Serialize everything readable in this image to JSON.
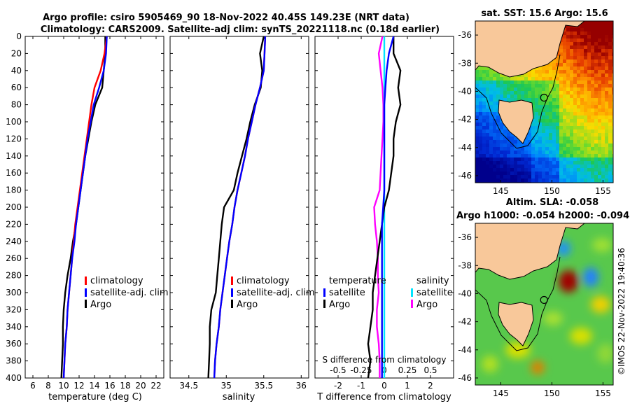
{
  "title_line1": "Argo profile: csiro 5905469_90 18-Nov-2022 40.45S 149.23E (NRT data)",
  "title_line2": "Climatology: CARS2009. Satellite-adj clim: synTS_20221118.nc (0.18d earlier)",
  "credit": "©IMOS 22-Nov-2022 19:40:36",
  "colors": {
    "climatology": "#ff0000",
    "satellite": "#0000ff",
    "argo": "#000000",
    "argo_s": "#ff00ff",
    "sat_s": "#00e5ff",
    "land": "#f8c89a"
  },
  "chart_data": [
    {
      "type": "line",
      "id": "temp",
      "xlabel": "temperature (deg C)",
      "xlim": [
        5,
        23
      ],
      "xticks": [
        "6",
        "8",
        "10",
        "12",
        "14",
        "16",
        "18",
        "20",
        "22"
      ],
      "ylim": [
        400,
        0
      ],
      "yticks": [
        "0",
        "20",
        "40",
        "60",
        "80",
        "100",
        "120",
        "140",
        "160",
        "180",
        "200",
        "220",
        "240",
        "260",
        "280",
        "300",
        "320",
        "340",
        "360",
        "380",
        "400"
      ],
      "depth": [
        0,
        20,
        40,
        60,
        80,
        100,
        120,
        140,
        160,
        180,
        200,
        220,
        240,
        260,
        280,
        300,
        320,
        340,
        360,
        380,
        400
      ],
      "series": [
        {
          "name": "climatology",
          "color": "#ff0000",
          "values": [
            15.6,
            15.3,
            14.8,
            14.0,
            13.6,
            13.3,
            13.0,
            12.7,
            12.4,
            12.1,
            11.8,
            11.5,
            11.3,
            11.1,
            10.9,
            10.7,
            10.5,
            10.4,
            10.2,
            10.1,
            10.0
          ]
        },
        {
          "name": "satellite-adj. clim",
          "color": "#0000ff",
          "values": [
            15.6,
            15.5,
            15.2,
            14.6,
            13.9,
            13.5,
            13.1,
            12.8,
            12.5,
            12.2,
            11.9,
            11.6,
            11.4,
            11.1,
            10.9,
            10.7,
            10.5,
            10.4,
            10.2,
            10.1,
            10.0
          ]
        },
        {
          "name": "Argo",
          "color": "#000000",
          "values": [
            15.4,
            15.4,
            15.2,
            15.0,
            14.1,
            13.6,
            13.2,
            12.8,
            12.5,
            12.2,
            11.9,
            11.6,
            11.2,
            10.9,
            10.5,
            10.2,
            10.0,
            9.9,
            9.9,
            9.8,
            9.7
          ]
        }
      ],
      "legend": [
        "climatology",
        "satellite-adj. clim",
        "Argo"
      ]
    },
    {
      "type": "line",
      "id": "sal",
      "xlabel": "salinity",
      "xlim": [
        34.25,
        36.1
      ],
      "xticks": [
        "34.5",
        "35",
        "35.5",
        "36"
      ],
      "ylim": [
        400,
        0
      ],
      "depth": [
        0,
        20,
        40,
        60,
        80,
        100,
        120,
        140,
        160,
        180,
        200,
        220,
        240,
        260,
        280,
        300,
        320,
        340,
        360,
        380,
        400
      ],
      "series": [
        {
          "name": "climatology",
          "color": "#ff0000",
          "values": [
            35.52,
            35.51,
            35.5,
            35.45,
            35.39,
            35.34,
            35.29,
            35.25,
            35.2,
            35.15,
            35.11,
            35.08,
            35.04,
            35.01,
            34.98,
            34.95,
            34.92,
            34.9,
            34.87,
            34.85,
            34.84
          ]
        },
        {
          "name": "satellite-adj. clim",
          "color": "#0000ff",
          "values": [
            35.52,
            35.51,
            35.5,
            35.45,
            35.39,
            35.34,
            35.29,
            35.25,
            35.2,
            35.15,
            35.11,
            35.08,
            35.04,
            35.01,
            34.98,
            34.95,
            34.92,
            34.9,
            34.87,
            34.85,
            34.84
          ]
        },
        {
          "name": "Argo",
          "color": "#000000",
          "values": [
            35.5,
            35.45,
            35.48,
            35.46,
            35.38,
            35.32,
            35.27,
            35.21,
            35.15,
            35.1,
            34.97,
            34.94,
            34.92,
            34.9,
            34.88,
            34.86,
            34.8,
            34.78,
            34.78,
            34.77,
            34.76
          ]
        }
      ],
      "legend": [
        "climatology",
        "satellite-adj. clim",
        "Argo"
      ]
    },
    {
      "type": "line",
      "id": "diff",
      "xlabel": "T difference from climatology",
      "xlabel_top": "S difference from climatology",
      "xlim": [
        -3,
        3
      ],
      "xticks": [
        "-2",
        "-1",
        "0",
        "1",
        "2"
      ],
      "xlim_s": [
        -0.75,
        0.75
      ],
      "xticks_s": [
        "-0.5",
        "-0.25",
        "0",
        "0.25",
        "0.5"
      ],
      "depth": [
        0,
        20,
        40,
        60,
        80,
        100,
        120,
        140,
        160,
        180,
        200,
        220,
        240,
        260,
        280,
        300,
        320,
        340,
        360,
        380,
        400
      ],
      "series": [
        {
          "name": "temperature satellite",
          "color": "#0000ff",
          "values": [
            0.4,
            0.2,
            0.1,
            0.05,
            0,
            0,
            0,
            0,
            0,
            0,
            -0.05,
            -0.1,
            -0.1,
            -0.1,
            -0.1,
            -0.1,
            -0.1,
            -0.1,
            -0.1,
            -0.1,
            -0.1
          ]
        },
        {
          "name": "temperature Argo",
          "color": "#000000",
          "values": [
            0.4,
            0.4,
            0.7,
            0.6,
            0.7,
            0.5,
            0.4,
            0.4,
            0.3,
            0.2,
            0.0,
            -0.1,
            -0.2,
            -0.3,
            -0.4,
            -0.5,
            -0.5,
            -0.6,
            -0.7,
            -0.6,
            -0.7
          ]
        },
        {
          "name": "salinity satellite",
          "color": "#00e5ff",
          "values": [
            0,
            0,
            0,
            0,
            0,
            0,
            0,
            0,
            0,
            0,
            0,
            0,
            0,
            0,
            0,
            0,
            0,
            0,
            0,
            0,
            0
          ]
        },
        {
          "name": "salinity Argo",
          "color": "#ff00ff",
          "values": [
            -0.02,
            -0.06,
            -0.04,
            -0.02,
            -0.01,
            -0.01,
            -0.02,
            -0.03,
            -0.04,
            -0.05,
            -0.11,
            -0.1,
            -0.08,
            -0.07,
            -0.07,
            -0.06,
            -0.08,
            -0.08,
            -0.06,
            -0.05,
            -0.05
          ]
        }
      ],
      "legend_t_title": "temperature",
      "legend_s_title": "salinity",
      "legend_t": [
        "satellite",
        "Argo"
      ],
      "legend_s": [
        "satellite",
        "Argo"
      ]
    },
    {
      "type": "heatmap",
      "id": "sst_map",
      "title": "sat. SST: 15.6 Argo: 15.6",
      "xlim": [
        142.5,
        156
      ],
      "ylim": [
        -46.5,
        -35
      ],
      "xticks": [
        "145",
        "150",
        "155"
      ],
      "yticks": [
        "-36",
        "-38",
        "-40",
        "-42",
        "-44",
        "-46"
      ],
      "argo_lon": 149.23,
      "argo_lat": -40.45
    },
    {
      "type": "heatmap",
      "id": "sla_map",
      "title_line1": "Altim. SLA: -0.058",
      "title_line2": "Argo h1000: -0.054 h2000: -0.094",
      "xlim": [
        142.5,
        156
      ],
      "ylim": [
        -46.5,
        -35
      ],
      "xticks": [
        "145",
        "150",
        "155"
      ],
      "yticks": [
        "-36",
        "-38",
        "-40",
        "-42",
        "-44",
        "-46"
      ],
      "argo_lon": 149.23,
      "argo_lat": -40.45
    }
  ]
}
